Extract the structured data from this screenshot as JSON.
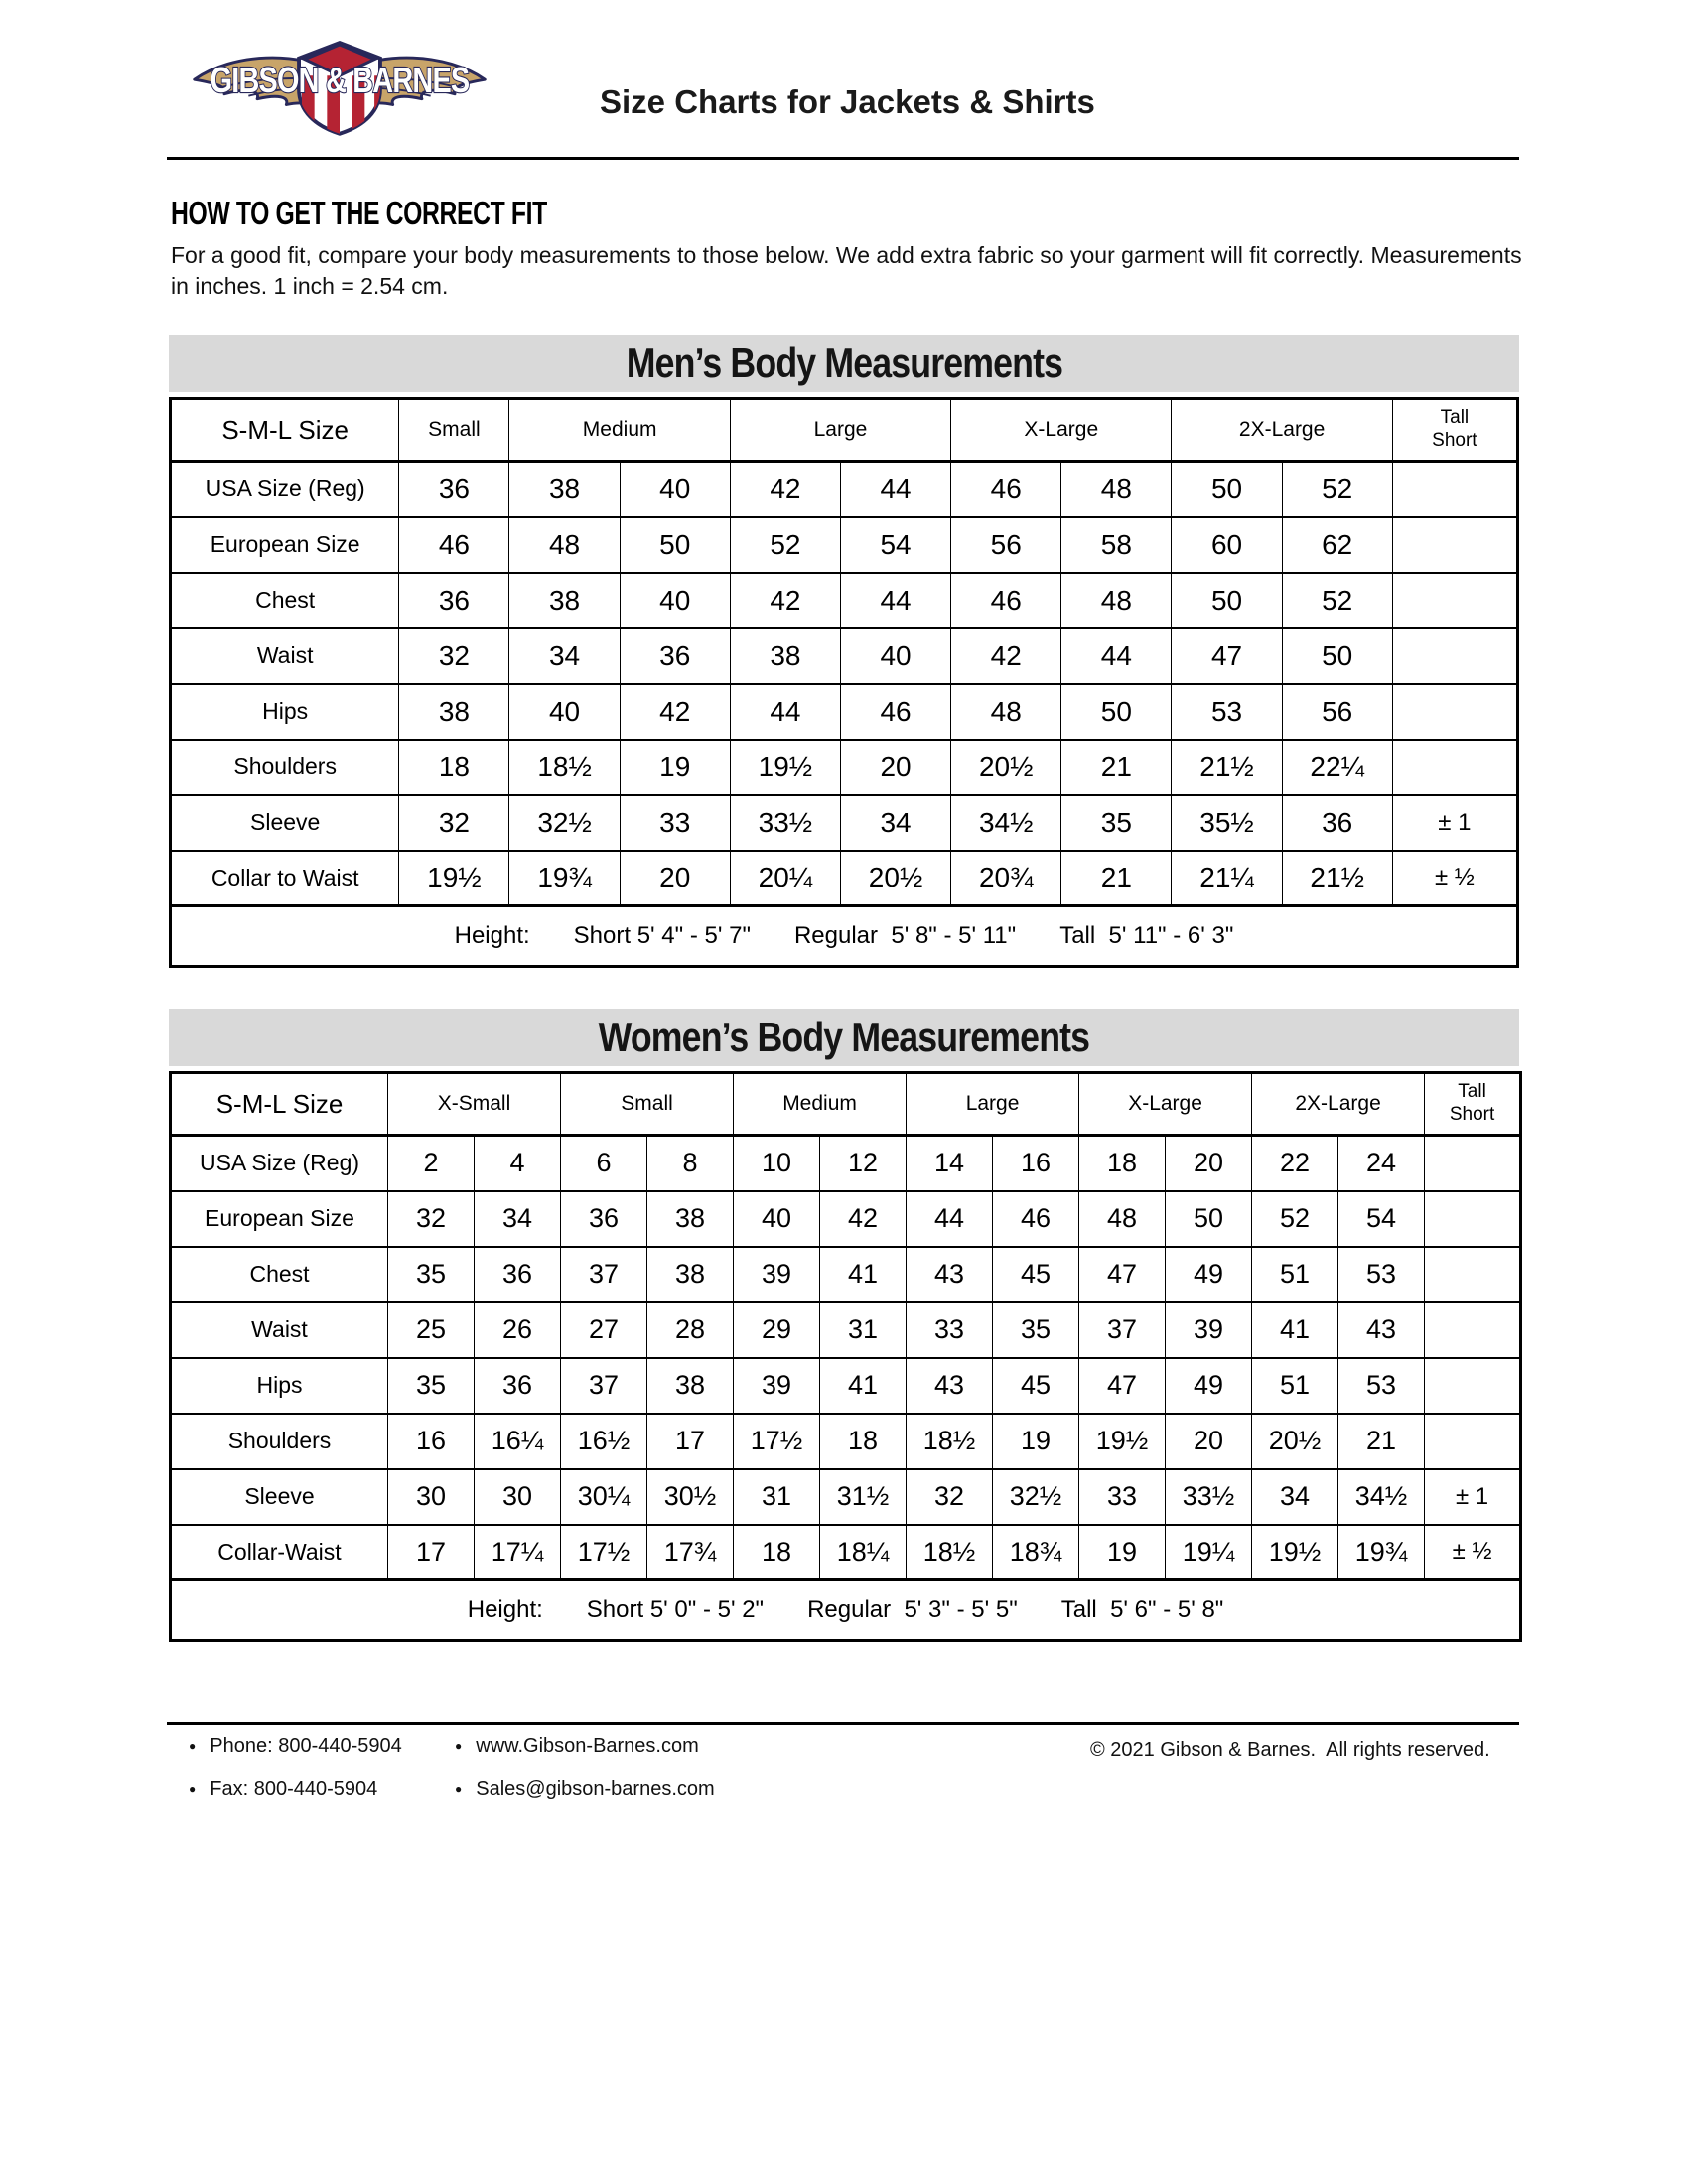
{
  "header": {
    "title": "Size Charts for Jackets & Shirts",
    "logo_text": "GIBSON & BARNES"
  },
  "intro": {
    "heading": "HOW TO GET THE CORRECT FIT",
    "body": "For a good fit, compare your body measurements to those below. We add extra fabric so your garment will fit correctly. Measurements in inches. 1 inch = 2.54 cm."
  },
  "mens": {
    "title": "Men’s Body Measurements",
    "corner_label": "S-M-L Size",
    "tolerance_header": "Tall\nShort",
    "groups": [
      {
        "label": "Small",
        "span": 1
      },
      {
        "label": "Medium",
        "span": 2
      },
      {
        "label": "Large",
        "span": 2
      },
      {
        "label": "X-Large",
        "span": 2
      },
      {
        "label": "2X-Large",
        "span": 2
      }
    ],
    "rows": [
      {
        "label": "USA Size (Reg)",
        "values": [
          "36",
          "38",
          "40",
          "42",
          "44",
          "46",
          "48",
          "50",
          "52"
        ],
        "tolerance": ""
      },
      {
        "label": "European Size",
        "values": [
          "46",
          "48",
          "50",
          "52",
          "54",
          "56",
          "58",
          "60",
          "62"
        ],
        "tolerance": ""
      },
      {
        "label": "Chest",
        "values": [
          "36",
          "38",
          "40",
          "42",
          "44",
          "46",
          "48",
          "50",
          "52"
        ],
        "tolerance": ""
      },
      {
        "label": "Waist",
        "values": [
          "32",
          "34",
          "36",
          "38",
          "40",
          "42",
          "44",
          "47",
          "50"
        ],
        "tolerance": ""
      },
      {
        "label": "Hips",
        "values": [
          "38",
          "40",
          "42",
          "44",
          "46",
          "48",
          "50",
          "53",
          "56"
        ],
        "tolerance": ""
      },
      {
        "label": "Shoulders",
        "values": [
          "18",
          "18½",
          "19",
          "19½",
          "20",
          "20½",
          "21",
          "21½",
          "22¼"
        ],
        "tolerance": ""
      },
      {
        "label": "Sleeve",
        "values": [
          "32",
          "32½",
          "33",
          "33½",
          "34",
          "34½",
          "35",
          "35½",
          "36"
        ],
        "tolerance": "± 1"
      },
      {
        "label": "Collar to Waist",
        "values": [
          "19½",
          "19¾",
          "20",
          "20¼",
          "20½",
          "20¾",
          "21",
          "21¼",
          "21½"
        ],
        "tolerance": "± ½"
      }
    ],
    "height": {
      "label": "Height:",
      "segments": [
        "Short 5' 4\" - 5' 7\"",
        "Regular  5' 8\" - 5' 11\"",
        "Tall  5' 11\" - 6' 3\""
      ]
    }
  },
  "womens": {
    "title": "Women’s Body Measurements",
    "corner_label": "S-M-L Size",
    "tolerance_header": "Tall\nShort",
    "groups": [
      {
        "label": "X-Small",
        "span": 2
      },
      {
        "label": "Small",
        "span": 2
      },
      {
        "label": "Medium",
        "span": 2
      },
      {
        "label": "Large",
        "span": 2
      },
      {
        "label": "X-Large",
        "span": 2
      },
      {
        "label": "2X-Large",
        "span": 2
      }
    ],
    "rows": [
      {
        "label": "USA Size (Reg)",
        "values": [
          "2",
          "4",
          "6",
          "8",
          "10",
          "12",
          "14",
          "16",
          "18",
          "20",
          "22",
          "24"
        ],
        "tolerance": ""
      },
      {
        "label": "European Size",
        "values": [
          "32",
          "34",
          "36",
          "38",
          "40",
          "42",
          "44",
          "46",
          "48",
          "50",
          "52",
          "54"
        ],
        "tolerance": ""
      },
      {
        "label": "Chest",
        "values": [
          "35",
          "36",
          "37",
          "38",
          "39",
          "41",
          "43",
          "45",
          "47",
          "49",
          "51",
          "53"
        ],
        "tolerance": ""
      },
      {
        "label": "Waist",
        "values": [
          "25",
          "26",
          "27",
          "28",
          "29",
          "31",
          "33",
          "35",
          "37",
          "39",
          "41",
          "43"
        ],
        "tolerance": ""
      },
      {
        "label": "Hips",
        "values": [
          "35",
          "36",
          "37",
          "38",
          "39",
          "41",
          "43",
          "45",
          "47",
          "49",
          "51",
          "53"
        ],
        "tolerance": ""
      },
      {
        "label": "Shoulders",
        "values": [
          "16",
          "16¼",
          "16½",
          "17",
          "17½",
          "18",
          "18½",
          "19",
          "19½",
          "20",
          "20½",
          "21"
        ],
        "tolerance": ""
      },
      {
        "label": "Sleeve",
        "values": [
          "30",
          "30",
          "30¼",
          "30½",
          "31",
          "31½",
          "32",
          "32½",
          "33",
          "33½",
          "34",
          "34½"
        ],
        "tolerance": "± 1"
      },
      {
        "label": "Collar-Waist",
        "values": [
          "17",
          "17¼",
          "17½",
          "17¾",
          "18",
          "18¼",
          "18½",
          "18¾",
          "19",
          "19¼",
          "19½",
          "19¾"
        ],
        "tolerance": "± ½"
      }
    ],
    "height": {
      "label": "Height:",
      "segments": [
        "Short 5' 0\" - 5' 2\"",
        "Regular  5' 3\" - 5' 5\"",
        "Tall  5' 6\" - 5' 8\""
      ]
    }
  },
  "footer": {
    "bullet": "●",
    "contacts": [
      {
        "text": "Phone: 800-440-5904"
      },
      {
        "text": "www.Gibson-Barnes.com"
      },
      {
        "text": "Fax: 800-440-5904"
      },
      {
        "text": "Sales@gibson-barnes.com"
      }
    ],
    "copyright": "© 2021 Gibson & Barnes.  All rights reserved."
  },
  "colors": {
    "banner_gray": "#d9d9d9",
    "logo_navy": "#28285a",
    "logo_tan": "#c8a469",
    "logo_red": "#b52333"
  }
}
